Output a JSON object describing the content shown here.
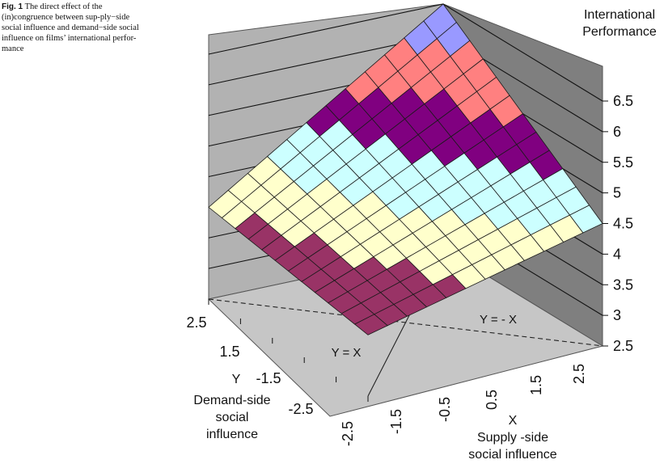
{
  "caption": {
    "label": "Fig. 1",
    "text": "The direct effect of the (in)congruence between sup-ply−side social influence and demand−side social influence on films’ international perfor-mance"
  },
  "chart_data": {
    "type": "surface-3d",
    "title": "",
    "z_axis": {
      "label_line1": "International",
      "label_line2": "Performance",
      "ticks": [
        "6.5",
        "6",
        "5.5",
        "5",
        "4.5",
        "4",
        "3.5",
        "3",
        "2.5"
      ],
      "range": [
        2.5,
        6.5
      ]
    },
    "x_axis": {
      "letter": "X",
      "label_line1": "Supply -side",
      "label_line2": "social influence",
      "ticks": [
        "-2.5",
        "-1.5",
        "-0.5",
        "0.5",
        "1.5",
        "2.5"
      ],
      "range": [
        -2.5,
        2.5
      ]
    },
    "y_axis": {
      "letter": "Y",
      "label_line1": "Demand-side",
      "label_line2": "social",
      "label_line3": "influence",
      "ticks": [
        "2.5",
        "1.5",
        "-1.5",
        "-2.5"
      ],
      "range": [
        -2.5,
        2.5
      ]
    },
    "floor_lines": [
      {
        "label": "Y = X",
        "style": "solid"
      },
      {
        "label": "Y = - X",
        "style": "dashed"
      }
    ],
    "bands": [
      {
        "from": 6.0,
        "to": 6.5,
        "color": "#9999ff"
      },
      {
        "from": 5.5,
        "to": 6.0,
        "color": "#ff8080"
      },
      {
        "from": 5.0,
        "to": 5.5,
        "color": "#800080"
      },
      {
        "from": 4.5,
        "to": 5.0,
        "color": "#ccffff"
      },
      {
        "from": 4.0,
        "to": 4.5,
        "color": "#ffffcc"
      },
      {
        "from": 3.5,
        "to": 4.0,
        "color": "#993366"
      }
    ],
    "surface_corners": [
      {
        "x": -2.5,
        "y": -2.5,
        "z": 6.5
      },
      {
        "x": 2.5,
        "y": -2.5,
        "z": 4.5
      },
      {
        "x": -2.5,
        "y": 2.5,
        "z": 4.0
      },
      {
        "x": 2.5,
        "y": 2.5,
        "z": 3.5
      }
    ]
  }
}
